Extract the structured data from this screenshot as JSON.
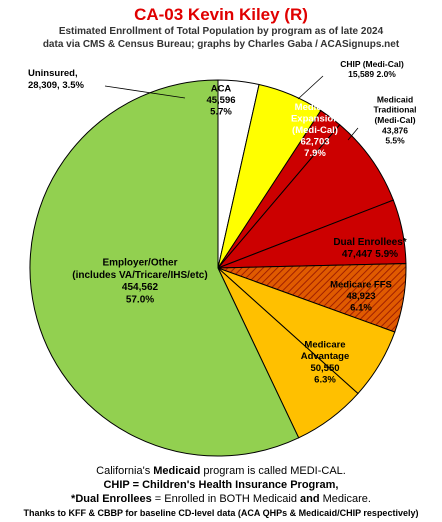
{
  "chart_data": {
    "type": "pie",
    "title": "CA-03 Kevin Kiley (R)",
    "subtitle": [
      "Estimated Enrollment of Total Population by program as of late 2024",
      "data via CMS & Census Bureau; graphs by Charles Gaba / ACASignups.net"
    ],
    "slices": [
      {
        "name": "Uninsured",
        "value": 28309,
        "percent": 3.5,
        "color": "#ffffff",
        "text_color": "#000000",
        "label_lines": [
          "Uninsured,",
          "28,309, 3.5%"
        ]
      },
      {
        "name": "ACA",
        "value": 45596,
        "percent": 5.7,
        "color": "#ffff00",
        "text_color": "#000000",
        "label_lines": [
          "ACA",
          "45,596",
          "5.7%"
        ]
      },
      {
        "name": "CHIP (Medi-Cal)",
        "value": 15589,
        "percent": 2.0,
        "color": "#cc0000",
        "text_color": "#000000",
        "label_lines": [
          "CHIP (Medi-Cal)",
          "15,589 2.0%"
        ]
      },
      {
        "name": "Medicaid Expansion (Medi-Cal)",
        "value": 62703,
        "percent": 7.9,
        "color": "#cc0000",
        "text_color": "#ffffff",
        "label_lines": [
          "Medicaid",
          "Expansion",
          "(Medi-Cal)",
          "62,703",
          "7.9%"
        ]
      },
      {
        "name": "Medicaid Traditional (Medi-Cal)",
        "value": 43876,
        "percent": 5.5,
        "color": "#cc0000",
        "text_color": "#000000",
        "label_lines": [
          "Medicaid",
          "Traditional",
          "(Medi-Cal)",
          "43,876",
          "5.5%"
        ]
      },
      {
        "name": "Dual Enrollees*",
        "value": 47447,
        "percent": 5.9,
        "color": "#d94a00",
        "text_color": "#000000",
        "hatched": true,
        "label_lines": [
          "Dual Enrollees*",
          "47,447 5.9%"
        ]
      },
      {
        "name": "Medicare FFS",
        "value": 48923,
        "percent": 6.1,
        "color": "#ffc000",
        "text_color": "#000000",
        "label_lines": [
          "Medicare FFS",
          "48,923",
          "6.1%"
        ]
      },
      {
        "name": "Medicare Advantage",
        "value": 50550,
        "percent": 6.3,
        "color": "#ffc000",
        "text_color": "#000000",
        "label_lines": [
          "Medicare",
          "Advantage",
          "50,550",
          "6.3%"
        ]
      },
      {
        "name": "Employer/Other (includes VA/Tricare/IHS/etc)",
        "value": 454562,
        "percent": 57.0,
        "color": "#92d050",
        "text_color": "#000000",
        "label_lines": [
          "Employer/Other",
          "(includes VA/Tricare/IHS/etc)",
          "454,562",
          "57.0%"
        ]
      }
    ],
    "start_angle_deg": 0,
    "direction": "clockwise",
    "legend": "none"
  },
  "footer": {
    "line1_pre": "California's ",
    "line1_bold": "Medicaid",
    "line1_post": " program is called MEDI-CAL.",
    "line2": "CHIP = Children's Health Insurance Program,",
    "line3_pre": "*Dual Enrollees",
    "line3_mid": " = Enrolled in BOTH Medicaid ",
    "line3_and": "and",
    "line3_post": " Medicare.",
    "line4": "Thanks to KFF & CBBP for baseline CD-level data (ACA QHPs & Medicaid/CHIP respectively)"
  }
}
